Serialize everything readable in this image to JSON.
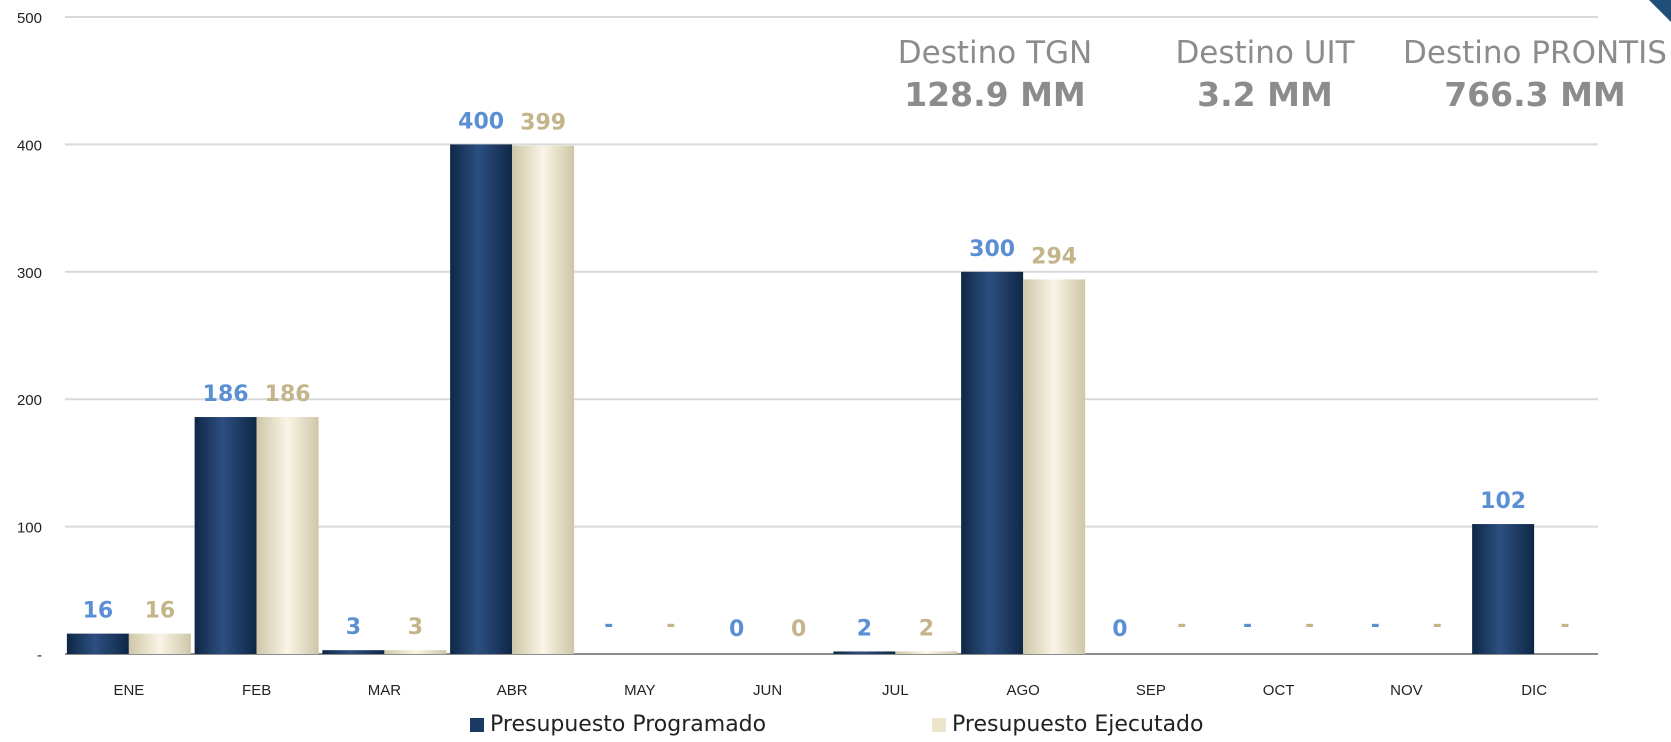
{
  "chart_data": {
    "type": "bar",
    "categories": [
      "ENE",
      "FEB",
      "MAR",
      "ABR",
      "MAY",
      "JUN",
      "JUL",
      "AGO",
      "SEP",
      "OCT",
      "NOV",
      "DIC"
    ],
    "series": [
      {
        "name": "Presupuesto Programado",
        "values": [
          16,
          186,
          3,
          400,
          0,
          0,
          2,
          300,
          0,
          0,
          0,
          102
        ],
        "labels": [
          "16",
          "186",
          "3",
          "400",
          "-",
          "0",
          "2",
          "300",
          "0",
          "-",
          "-",
          "102"
        ],
        "color": "#1b3a63",
        "label_color": "#5b8fd4"
      },
      {
        "name": "Presupuesto Ejecutado",
        "values": [
          16,
          186,
          3,
          399,
          0,
          0,
          2,
          294,
          0,
          0,
          0,
          0
        ],
        "labels": [
          "16",
          "186",
          "3",
          "399",
          "-",
          "0",
          "2",
          "294",
          "-",
          "-",
          "-",
          "-"
        ],
        "color": "#ece5cc",
        "label_color": "#c3b48a"
      }
    ],
    "yticks": [
      {
        "value": 0,
        "label": "-"
      },
      {
        "value": 100,
        "label": "100"
      },
      {
        "value": 200,
        "label": "200"
      },
      {
        "value": 300,
        "label": "300"
      },
      {
        "value": 400,
        "label": "400"
      },
      {
        "value": 500,
        "label": "500"
      }
    ],
    "ylim": [
      0,
      500
    ],
    "grid": true,
    "legend_position": "bottom"
  },
  "destinos": [
    {
      "name": "Destino TGN",
      "value": "128.9 MM"
    },
    {
      "name": "Destino UIT",
      "value": "3.2  MM"
    },
    {
      "name": "Destino PRONTIS",
      "value": "766.3 MM"
    }
  ]
}
